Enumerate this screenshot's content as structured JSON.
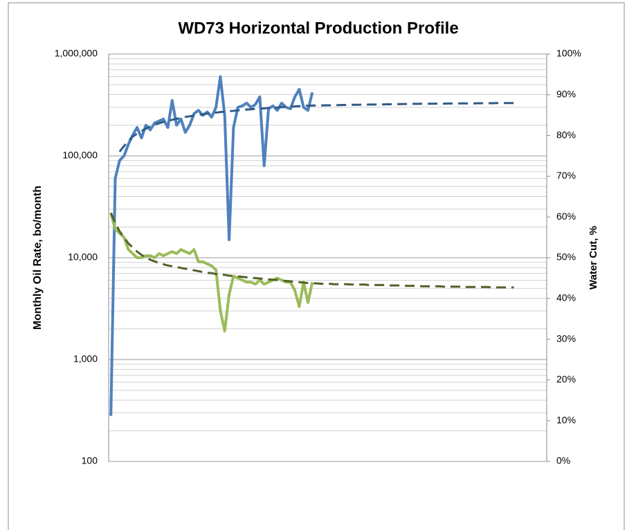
{
  "chart_data": {
    "type": "line",
    "title": "WD73 Horizontal Production Profile",
    "y_label": "Monthly Oil Rate, bo/month",
    "y2_label": "Water Cut, %",
    "log_y": true,
    "grid": true,
    "minor_grid": true,
    "ylim": [
      100,
      1000000
    ],
    "yticks": [
      100,
      {
        "value": 1000,
        "label": "1,000"
      },
      {
        "value": 10000,
        "label": "10,000"
      },
      {
        "value": 100000,
        "label": "100,000"
      },
      {
        "value": 1000000,
        "label": "1,000,000"
      }
    ],
    "y2lim": [
      0,
      100
    ],
    "y2ticks": [
      {
        "value": 0,
        "label": "0%"
      },
      {
        "value": 10,
        "label": "10%"
      },
      {
        "value": 20,
        "label": "20%"
      },
      {
        "value": 30,
        "label": "30%"
      },
      {
        "value": 40,
        "label": "40%"
      },
      {
        "value": 50,
        "label": "50%"
      },
      {
        "value": 60,
        "label": "60%"
      },
      {
        "value": 70,
        "label": "70%"
      },
      {
        "value": 80,
        "label": "80%"
      },
      {
        "value": 90,
        "label": "90%"
      },
      {
        "value": 100,
        "label": "100%"
      }
    ],
    "categories": [
      null,
      null,
      null,
      null,
      null,
      null,
      null,
      null,
      null,
      null,
      null,
      null,
      null,
      null,
      null,
      null,
      null,
      null,
      null,
      null,
      null,
      null,
      null,
      null,
      null,
      null,
      null,
      null,
      null,
      null,
      null,
      null,
      null,
      null,
      null,
      null,
      null,
      null,
      null,
      null,
      null,
      null,
      null,
      null,
      null,
      null,
      null,
      null,
      null,
      null,
      null,
      null,
      null,
      null,
      null,
      null,
      null,
      null,
      null,
      null,
      null,
      null,
      null,
      null,
      null,
      null,
      null,
      null,
      null,
      null,
      null,
      null,
      null,
      null,
      null,
      null,
      null,
      null,
      null,
      null,
      null,
      null,
      null,
      null,
      null,
      null,
      null,
      null,
      null,
      null,
      null,
      null,
      null,
      null,
      null,
      null,
      null,
      null,
      null,
      null
    ],
    "series": [
      {
        "color": "#4f81bd",
        "dash": false,
        "width": 4,
        "values": [
          280,
          60000,
          90000,
          100000,
          130000,
          160000,
          190000,
          150000,
          200000,
          180000,
          210000,
          220000,
          230000,
          190000,
          350000,
          200000,
          230000,
          170000,
          200000,
          260000,
          280000,
          250000,
          270000,
          240000,
          300000,
          600000,
          250000,
          15000,
          190000,
          300000,
          310000,
          330000,
          300000,
          320000,
          380000,
          80000,
          290000,
          310000,
          280000,
          330000,
          300000,
          290000,
          380000,
          450000,
          300000,
          280000,
          420000,
          null,
          null,
          null,
          null,
          null,
          null,
          null,
          null,
          null,
          null,
          null,
          null,
          null,
          null,
          null,
          null,
          null,
          null,
          null,
          null,
          null,
          null,
          null,
          null,
          null,
          null,
          null,
          null,
          null,
          null,
          null,
          null,
          null,
          null,
          null,
          null,
          null,
          null,
          null,
          null,
          null,
          null,
          null,
          null,
          null,
          null,
          null,
          null,
          null,
          null,
          null,
          null,
          null
        ]
      },
      {
        "color": "#9bbb59",
        "dash": false,
        "width": 4,
        "axis": "y2",
        "values": [
          61,
          57,
          56,
          55,
          52,
          51,
          50,
          50,
          50.5,
          50.5,
          50,
          51,
          50.5,
          51,
          51.5,
          51,
          52,
          51.5,
          51,
          52,
          49,
          49,
          48.5,
          48,
          47,
          37,
          32,
          41,
          45.5,
          45,
          44.5,
          44,
          44,
          43.5,
          44.5,
          43.5,
          44,
          44.5,
          45,
          44.5,
          44,
          44,
          42,
          38,
          44,
          39,
          44,
          null,
          null,
          null,
          null,
          null,
          null,
          null,
          null,
          null,
          null,
          null,
          null,
          null,
          null,
          null,
          null,
          null,
          null,
          null,
          null,
          null,
          null,
          null,
          null,
          null,
          null,
          null,
          null,
          null,
          null,
          null,
          null,
          null,
          null,
          null,
          null,
          null,
          null,
          null,
          null,
          null,
          null,
          null,
          null,
          null,
          null,
          null,
          null,
          null,
          null,
          null,
          null,
          null
        ]
      },
      {
        "color": "#2e5b87",
        "dash": true,
        "width": 3,
        "values": [
          null,
          null,
          110000,
          125000,
          140000,
          155000,
          165000,
          175000,
          185000,
          195000,
          203000,
          209000,
          215000,
          221000,
          226000,
          231000,
          236000,
          241000,
          245000,
          249000,
          253000,
          256000,
          260000,
          263000,
          266000,
          269000,
          272000,
          275000,
          277000,
          280000,
          282000,
          285000,
          287000,
          289000,
          291000,
          293000,
          295000,
          297000,
          299000,
          301000,
          303000,
          304000,
          306000,
          308000,
          309000,
          311000,
          312000,
          313000,
          313000,
          314000,
          314000,
          315000,
          315000,
          316000,
          316000,
          317000,
          317000,
          318000,
          318000,
          319000,
          319000,
          320000,
          320000,
          321000,
          321000,
          322000,
          322000,
          323000,
          323000,
          324000,
          324000,
          325000,
          325000,
          325000,
          326000,
          326000,
          326000,
          327000,
          327000,
          327000,
          328000,
          328000,
          328000,
          328000,
          329000,
          329000,
          329000,
          329000,
          330000,
          330000,
          330000,
          330000,
          330000,
          null,
          null,
          null,
          null,
          null,
          null,
          null
        ]
      },
      {
        "color": "#4f6228",
        "dash": true,
        "width": 3,
        "axis": "y2",
        "values": [
          61,
          58.5,
          56.5,
          55,
          53.5,
          52.5,
          51.5,
          50.7,
          50,
          49.5,
          49.1,
          48.7,
          48.4,
          48.1,
          47.9,
          47.7,
          47.5,
          47.3,
          47.1,
          46.9,
          46.7,
          46.5,
          46.3,
          46.2,
          46,
          45.9,
          45.8,
          45.6,
          45.5,
          45.4,
          45.3,
          45.2,
          45.1,
          45,
          44.9,
          44.8,
          44.7,
          44.6,
          44.5,
          44.4,
          44.3,
          44.2,
          44.1,
          44,
          43.9,
          43.8,
          43.7,
          43.7,
          43.6,
          43.6,
          43.6,
          43.5,
          43.5,
          43.5,
          43.5,
          43.4,
          43.4,
          43.4,
          43.4,
          43.3,
          43.3,
          43.3,
          43.3,
          43.2,
          43.2,
          43.2,
          43.2,
          43.1,
          43.1,
          43.1,
          43.1,
          43,
          43,
          43,
          43,
          43,
          42.9,
          42.9,
          42.9,
          42.9,
          42.9,
          42.8,
          42.8,
          42.8,
          42.8,
          42.8,
          42.8,
          42.7,
          42.7,
          42.7,
          42.7,
          42.7,
          42.7,
          null,
          null,
          null,
          null,
          null,
          null,
          null
        ]
      }
    ]
  }
}
